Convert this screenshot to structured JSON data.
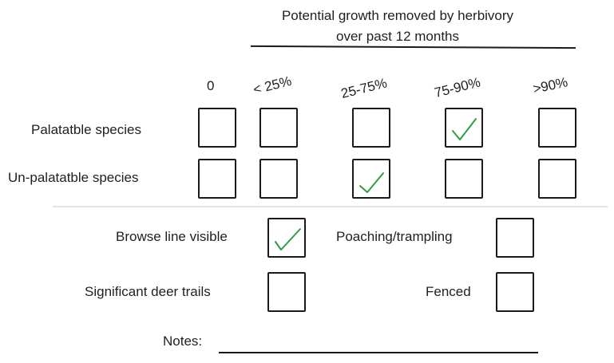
{
  "header": {
    "title_line1": "Potential growth removed by herbivory",
    "title_line2": "over past 12 months"
  },
  "columns": [
    "0",
    "< 25%",
    "25-75%",
    "75-90%",
    ">90%"
  ],
  "rows": [
    {
      "label": "Palatatble species",
      "checked": [
        false,
        false,
        false,
        true,
        false
      ]
    },
    {
      "label": "Un-palatatble species",
      "checked": [
        false,
        false,
        true,
        false,
        false
      ]
    }
  ],
  "indicators": {
    "browse_line": {
      "label": "Browse line visible",
      "checked": true
    },
    "poaching": {
      "label": "Poaching/trampling",
      "checked": false
    },
    "deer_trails": {
      "label": "Significant deer trails",
      "checked": false
    },
    "fenced": {
      "label": "Fenced",
      "checked": false
    }
  },
  "notes": {
    "label": "Notes:",
    "value": ""
  },
  "colors": {
    "check": "#2e9e3e",
    "ink": "#1a1a1a",
    "divider": "#dfe4ea"
  }
}
